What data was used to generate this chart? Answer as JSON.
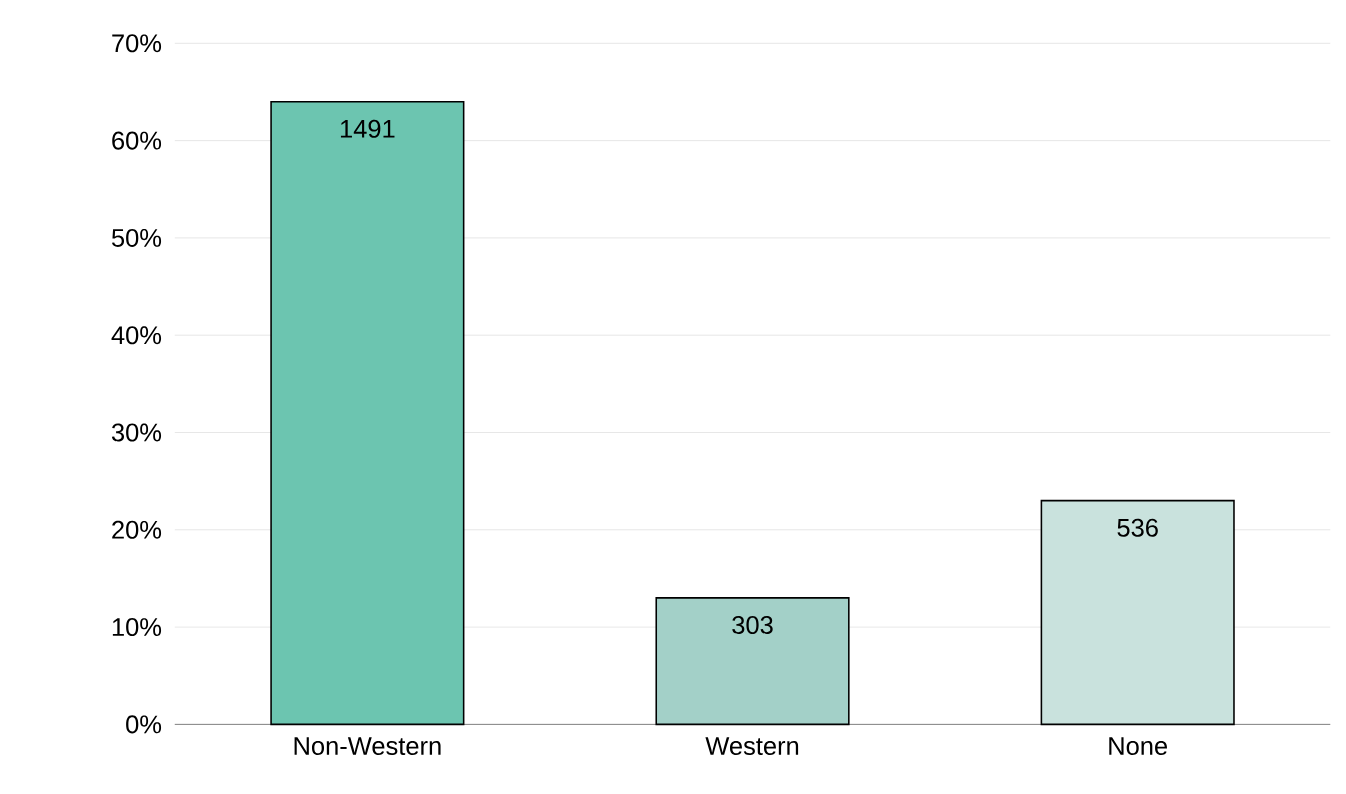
{
  "chart_data": {
    "type": "bar",
    "categories": [
      "Non-Western",
      "Western",
      "None"
    ],
    "values": [
      64,
      13,
      23
    ],
    "colors": [
      "#6cc5b0",
      "#a3d0c8",
      "#c9e2dd"
    ],
    "annotations": [
      {
        "text": "1491",
        "x": "Non-Western",
        "y": 64
      },
      {
        "text": "303",
        "x": "Western",
        "y": 13
      },
      {
        "text": "536",
        "x": "None",
        "y": 23
      }
    ],
    "ylim": [
      0,
      70
    ],
    "yticks": [
      {
        "value": 0,
        "label": "0%"
      },
      {
        "value": 10,
        "label": "10%"
      },
      {
        "value": 20,
        "label": "20%"
      },
      {
        "value": 30,
        "label": "30%"
      },
      {
        "value": 40,
        "label": "40%"
      },
      {
        "value": 50,
        "label": "50%"
      },
      {
        "value": 60,
        "label": "60%"
      },
      {
        "value": 70,
        "label": "70%"
      }
    ],
    "grid": "y"
  }
}
